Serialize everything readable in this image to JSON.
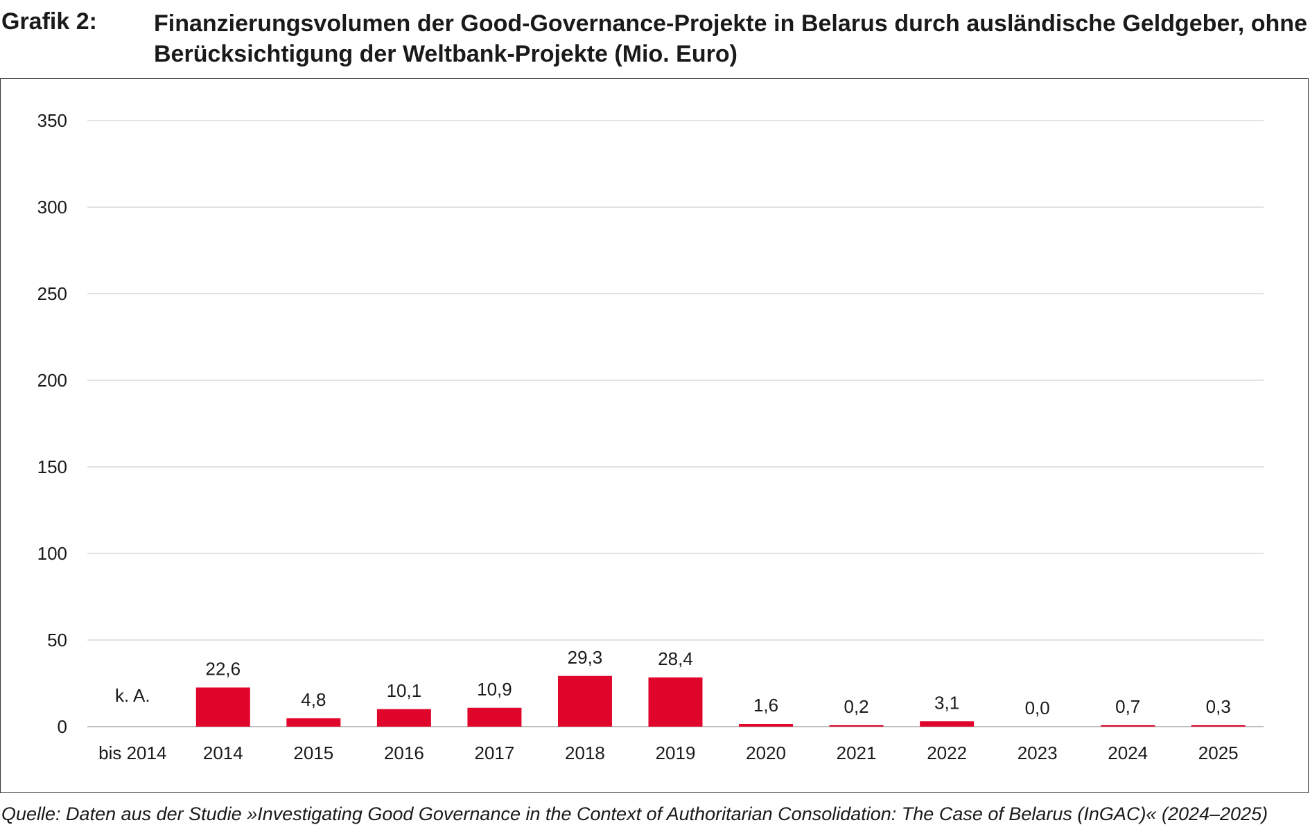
{
  "figure_label": "Grafik 2:",
  "figure_title": "Finanzierungsvolumen der Good-Governance-Projekte in Belarus durch ausländische Geldgeber, ohne Berücksichtigung der Weltbank-Projekte (Mio. Euro)",
  "source_note": "Quelle: Daten aus der Studie »Investigating Good Governance in the Context of Authoritarian Consolidation: The Case of Belarus (InGAC)« (2024–2025)",
  "colors": {
    "bar": "#e0052b",
    "gridline": "#d9d9d9",
    "baseline": "#bfbfbf"
  },
  "chart_data": {
    "type": "bar",
    "title": "Finanzierungsvolumen der Good-Governance-Projekte in Belarus durch ausländische Geldgeber, ohne Berücksichtigung der Weltbank-Projekte (Mio. Euro)",
    "xlabel": "",
    "ylabel": "",
    "ylim": [
      0,
      350
    ],
    "yticks": [
      0,
      50,
      100,
      150,
      200,
      250,
      300,
      350
    ],
    "grid": true,
    "legend": "none",
    "categories": [
      "bis 2014",
      "2014",
      "2015",
      "2016",
      "2017",
      "2018",
      "2019",
      "2020",
      "2021",
      "2022",
      "2023",
      "2024",
      "2025"
    ],
    "values": [
      null,
      22.6,
      4.8,
      10.1,
      10.9,
      29.3,
      28.4,
      1.6,
      0.2,
      3.1,
      0.0,
      0.7,
      0.3
    ],
    "data_labels": [
      "k. A.",
      "22,6",
      "4,8",
      "10,1",
      "10,9",
      "29,3",
      "28,4",
      "1,6",
      "0,2",
      "3,1",
      "0,0",
      "0,7",
      "0,3"
    ]
  }
}
